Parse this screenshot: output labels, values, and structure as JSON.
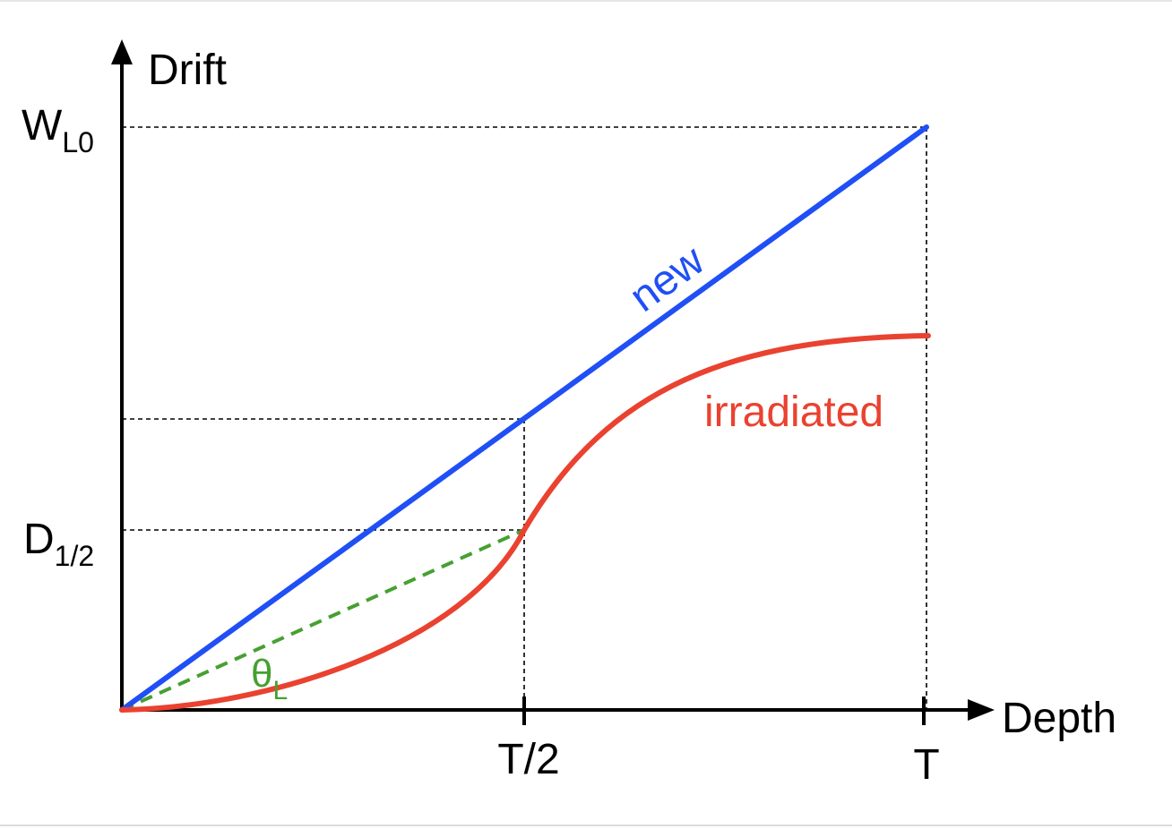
{
  "diagram": {
    "axes": {
      "y_label": "Drift",
      "x_label": "Depth"
    },
    "y_ticks": {
      "w_main": "W",
      "w_sub": "L0",
      "d_main": "D",
      "d_sub": "1/2"
    },
    "x_ticks": {
      "half": "T/2",
      "full": "T"
    },
    "curves": {
      "new_label": "new",
      "irradiated_label": "irradiated",
      "angle_main": "θ",
      "angle_sub": "L"
    },
    "colors": {
      "new": "#1f4ff5",
      "irradiated": "#ea4230",
      "angle": "#46a031",
      "axes": "#000000"
    }
  }
}
